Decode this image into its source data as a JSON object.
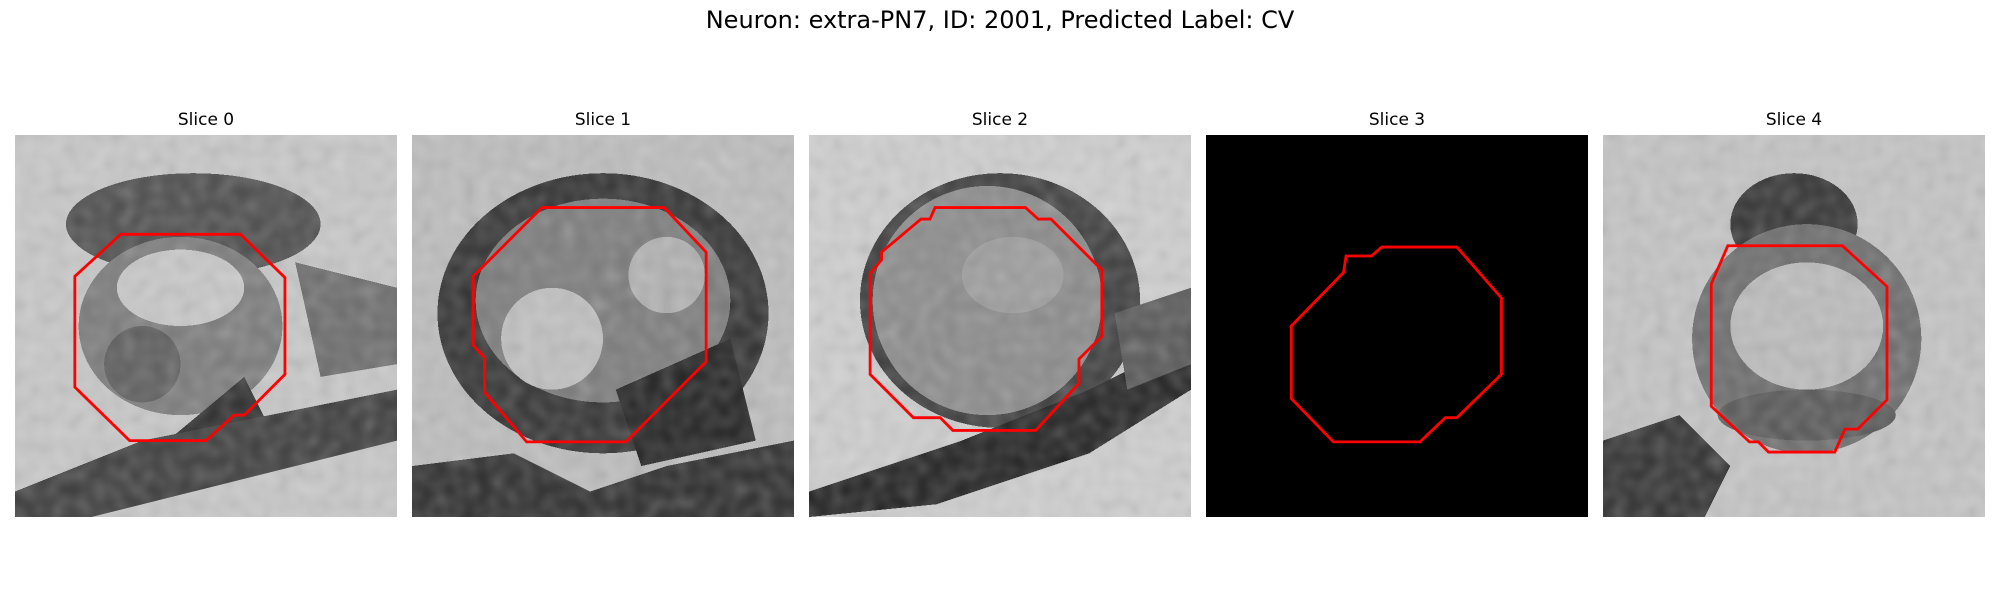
{
  "figure": {
    "title": "Neuron: extra-PN7, ID: 2001, Predicted Label: CV"
  },
  "panels": [
    {
      "title": "Slice 0",
      "contour_color": "#ff0000",
      "image": "grayscale-em-patch"
    },
    {
      "title": "Slice 1",
      "contour_color": "#ff0000",
      "image": "grayscale-em-patch"
    },
    {
      "title": "Slice 2",
      "contour_color": "#ff0000",
      "image": "grayscale-em-patch"
    },
    {
      "title": "Slice 3",
      "contour_color": "#ff0000",
      "image": "black-empty-patch"
    },
    {
      "title": "Slice 4",
      "contour_color": "#ff0000",
      "image": "grayscale-em-patch"
    }
  ]
}
